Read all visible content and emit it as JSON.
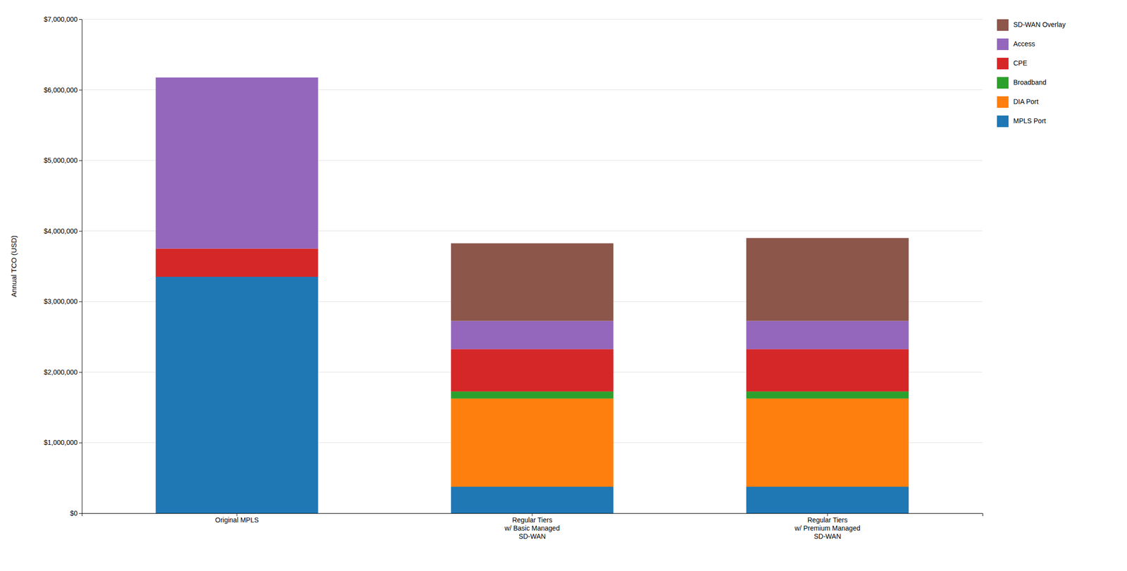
{
  "chart_data": {
    "type": "bar",
    "stacked": true,
    "categories": [
      "Original MPLS",
      "Regular Tiers\nw/ Basic Managed\nSD-WAN",
      "Regular Tiers\nw/ Premium Managed\nSD-WAN"
    ],
    "series": [
      {
        "name": "MPLS Port",
        "values": [
          3350000,
          375000,
          375000
        ]
      },
      {
        "name": "DIA Port",
        "values": [
          0,
          1250000,
          1250000
        ]
      },
      {
        "name": "Broadband",
        "values": [
          0,
          100000,
          100000
        ]
      },
      {
        "name": "CPE",
        "values": [
          400000,
          600000,
          600000
        ]
      },
      {
        "name": "Access",
        "values": [
          2425000,
          400000,
          400000
        ]
      },
      {
        "name": "SD-WAN Overlay",
        "values": [
          0,
          1100000,
          1175000
        ]
      }
    ],
    "ylabel": "Annual TCO (USD)",
    "ylim": [
      0,
      7000000
    ],
    "yticks": [
      {
        "value": 0,
        "label": "$0"
      },
      {
        "value": 1000000,
        "label": "$1,000,000"
      },
      {
        "value": 2000000,
        "label": "$2,000,000"
      },
      {
        "value": 3000000,
        "label": "$3,000,000"
      },
      {
        "value": 4000000,
        "label": "$4,000,000"
      },
      {
        "value": 5000000,
        "label": "$5,000,000"
      },
      {
        "value": 6000000,
        "label": "$6,000,000"
      },
      {
        "value": 7000000,
        "label": "$7,000,000"
      }
    ],
    "grid": true,
    "legend": "right"
  }
}
